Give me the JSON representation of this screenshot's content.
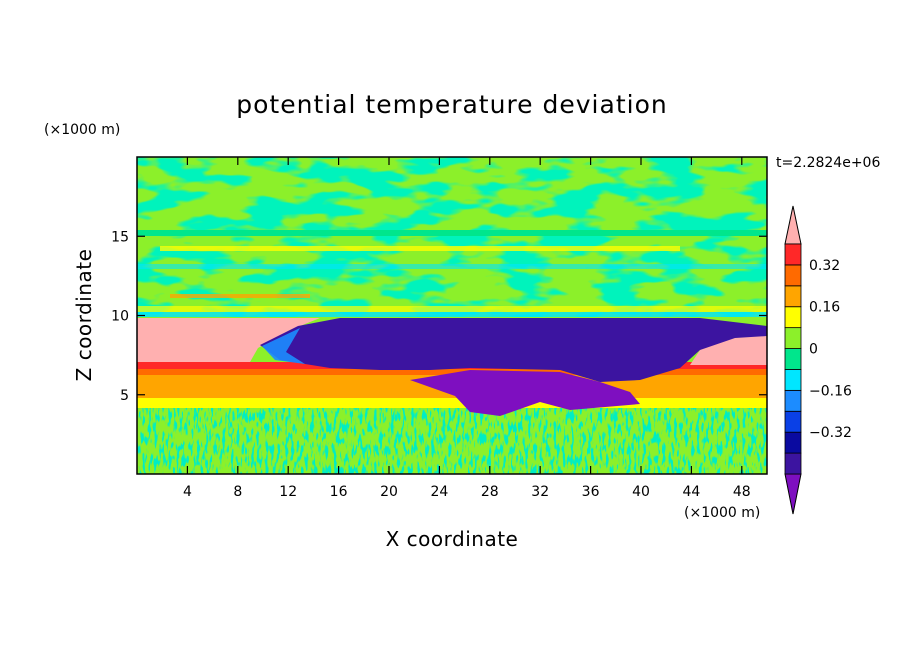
{
  "chart_data": {
    "type": "heatmap",
    "title": "potential temperature deviation",
    "xlabel": "X coordinate",
    "ylabel": "Z coordinate",
    "x_unit": "(×1000 m)",
    "y_unit": "(×1000 m)",
    "time_label": "t=2.2824e+06",
    "xlim": [
      0,
      50
    ],
    "ylim": [
      0,
      20
    ],
    "x_ticks": [
      4,
      8,
      12,
      16,
      20,
      24,
      28,
      32,
      36,
      40,
      44,
      48
    ],
    "y_ticks": [
      5,
      10,
      15
    ],
    "colorbar": {
      "levels": [
        -0.48,
        -0.4,
        -0.32,
        -0.24,
        -0.16,
        -0.08,
        0,
        0.08,
        0.16,
        0.24,
        0.32,
        0.4
      ],
      "tick_values": [
        -0.32,
        -0.16,
        0,
        0.16,
        0.32
      ],
      "tick_labels": [
        "−0.32",
        "−0.16",
        "0",
        "0.16",
        "0.32"
      ],
      "colors": [
        "#7e0fc0",
        "#3c14a0",
        "#0a0aa0",
        "#0a40e6",
        "#1c8cff",
        "#00e6ff",
        "#00e68c",
        "#8cf02a",
        "#ffff00",
        "#ffa500",
        "#ff6a00",
        "#ff2828",
        "#ffb0b0"
      ]
    },
    "regions": [
      {
        "zmin": 0.0,
        "zmax": 4.2,
        "value": 0.0,
        "note": "noisy green/cyan"
      },
      {
        "zmin": 4.2,
        "zmax": 4.8,
        "value": 0.1
      },
      {
        "zmin": 4.8,
        "zmax": 5.6,
        "value": 0.18
      },
      {
        "zmin": 5.6,
        "zmax": 6.2,
        "value": 0.24
      },
      {
        "zmin": 6.2,
        "zmax": 6.8,
        "value": 0.36
      },
      {
        "zmin": 6.8,
        "zmax": 9.8,
        "value": 0.45,
        "x_range": [
          0,
          12
        ]
      },
      {
        "zmin": 6.8,
        "zmax": 9.8,
        "value": 0.45,
        "x_range": [
          44,
          50
        ]
      },
      {
        "zmin": 6.8,
        "zmax": 9.8,
        "value": -0.4,
        "x_range": [
          12,
          44
        ]
      },
      {
        "zmin": 4.0,
        "zmax": 6.8,
        "value": -0.48,
        "x_range": [
          22,
          40
        ]
      },
      {
        "zmin": 9.8,
        "zmax": 20.0,
        "value": 0.04,
        "note": "layered green with cyan and yellow bands"
      }
    ]
  }
}
